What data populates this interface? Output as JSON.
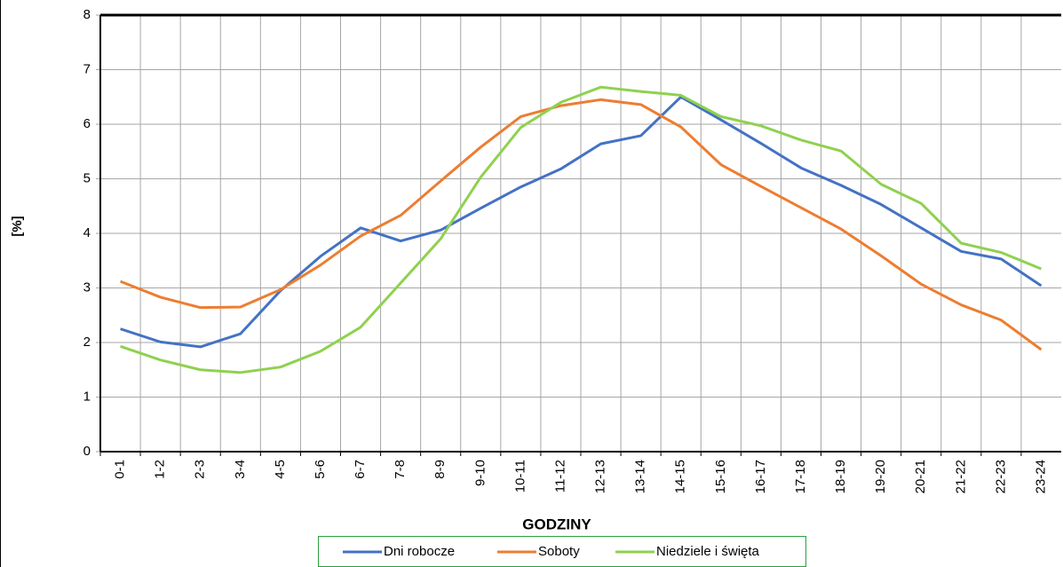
{
  "chart_data": {
    "type": "line",
    "x_label": "GODZINY",
    "y_label": "[%]",
    "categories": [
      "0-1",
      "1-2",
      "2-3",
      "3-4",
      "4-5",
      "5-6",
      "6-7",
      "7-8",
      "8-9",
      "9-10",
      "10-11",
      "11-12",
      "12-13",
      "13-14",
      "14-15",
      "15-16",
      "16-17",
      "17-18",
      "18-19",
      "19-20",
      "20-21",
      "21-22",
      "22-23",
      "23-24"
    ],
    "series": [
      {
        "name": "Dni robocze",
        "color": "#4472c4",
        "values": [
          2.25,
          2.01,
          1.92,
          2.16,
          2.95,
          3.58,
          4.1,
          3.86,
          4.06,
          4.46,
          4.85,
          5.18,
          5.64,
          5.79,
          6.5,
          6.08,
          5.65,
          5.2,
          4.88,
          4.53,
          4.1,
          3.67,
          3.53,
          3.04
        ]
      },
      {
        "name": "Soboty",
        "color": "#ed7d31",
        "values": [
          3.12,
          2.83,
          2.64,
          2.65,
          2.97,
          3.42,
          3.95,
          4.33,
          4.96,
          5.58,
          6.14,
          6.34,
          6.45,
          6.36,
          5.95,
          5.26,
          4.86,
          4.47,
          4.08,
          3.59,
          3.07,
          2.69,
          2.41,
          1.87
        ]
      },
      {
        "name": "Niedziele i święta",
        "color": "#8fd14f",
        "values": [
          1.93,
          1.68,
          1.5,
          1.45,
          1.55,
          1.84,
          2.28,
          3.09,
          3.9,
          5.03,
          5.94,
          6.4,
          6.68,
          6.6,
          6.53,
          6.14,
          5.97,
          5.71,
          5.51,
          4.9,
          4.55,
          3.82,
          3.65,
          3.35
        ]
      }
    ],
    "ylim": [
      0,
      8
    ],
    "yticks": [
      0,
      1,
      2,
      3,
      4,
      5,
      6,
      7,
      8
    ],
    "grid": true
  }
}
